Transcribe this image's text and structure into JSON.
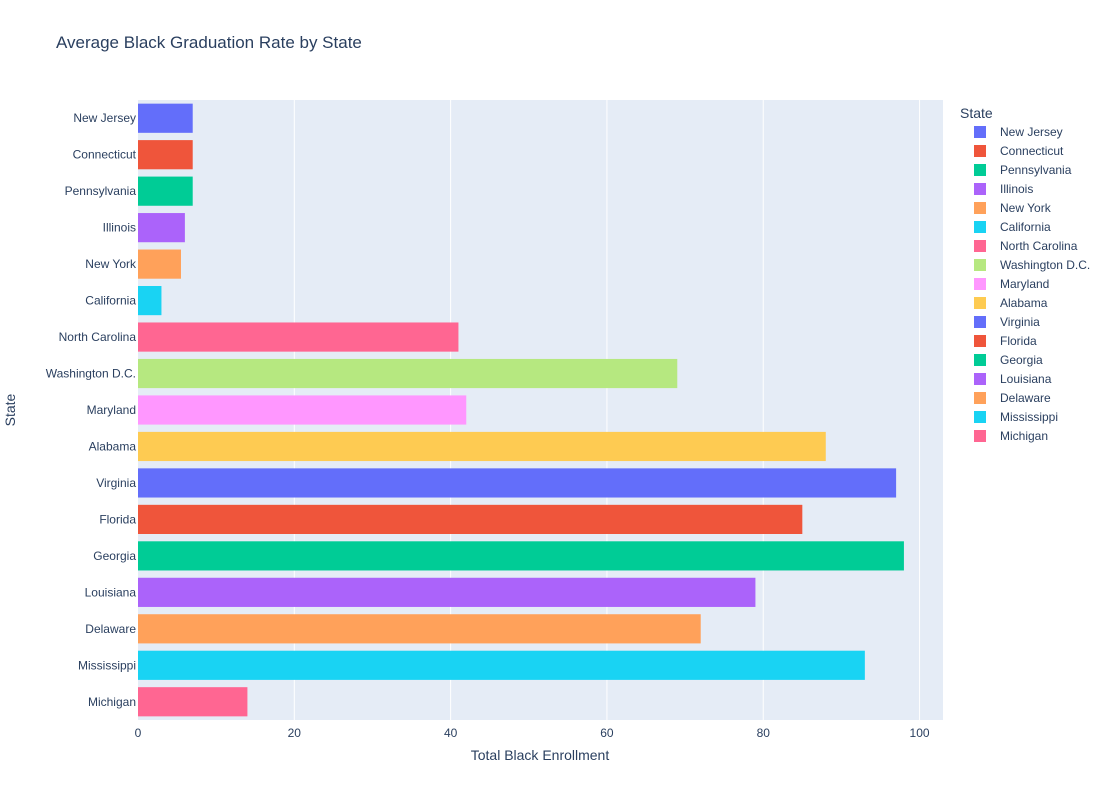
{
  "chart_data": {
    "type": "bar",
    "orientation": "horizontal",
    "title": "Average Black Graduation Rate by State",
    "xlabel": "Total Black Enrollment",
    "ylabel": "State",
    "xlim": [
      0,
      103
    ],
    "xticks": [
      0,
      20,
      40,
      60,
      80,
      100
    ],
    "grid": true,
    "legend_title": "State",
    "legend_position": "right",
    "categories": [
      "New Jersey",
      "Connecticut",
      "Pennsylvania",
      "Illinois",
      "New York",
      "California",
      "North Carolina",
      "Washington D.C.",
      "Maryland",
      "Alabama",
      "Virginia",
      "Florida",
      "Georgia",
      "Louisiana",
      "Delaware",
      "Mississippi",
      "Michigan"
    ],
    "values": [
      7,
      7,
      7,
      6,
      5.5,
      3,
      41,
      69,
      42,
      88,
      97,
      85,
      98,
      79,
      72,
      93,
      14
    ],
    "colors": [
      "#636efa",
      "#ef553b",
      "#00cc96",
      "#ab63fa",
      "#ffa15a",
      "#19d3f3",
      "#ff6692",
      "#b6e880",
      "#ff97ff",
      "#fecb52",
      "#636efa",
      "#ef553b",
      "#00cc96",
      "#ab63fa",
      "#ffa15a",
      "#19d3f3",
      "#ff6692"
    ]
  }
}
